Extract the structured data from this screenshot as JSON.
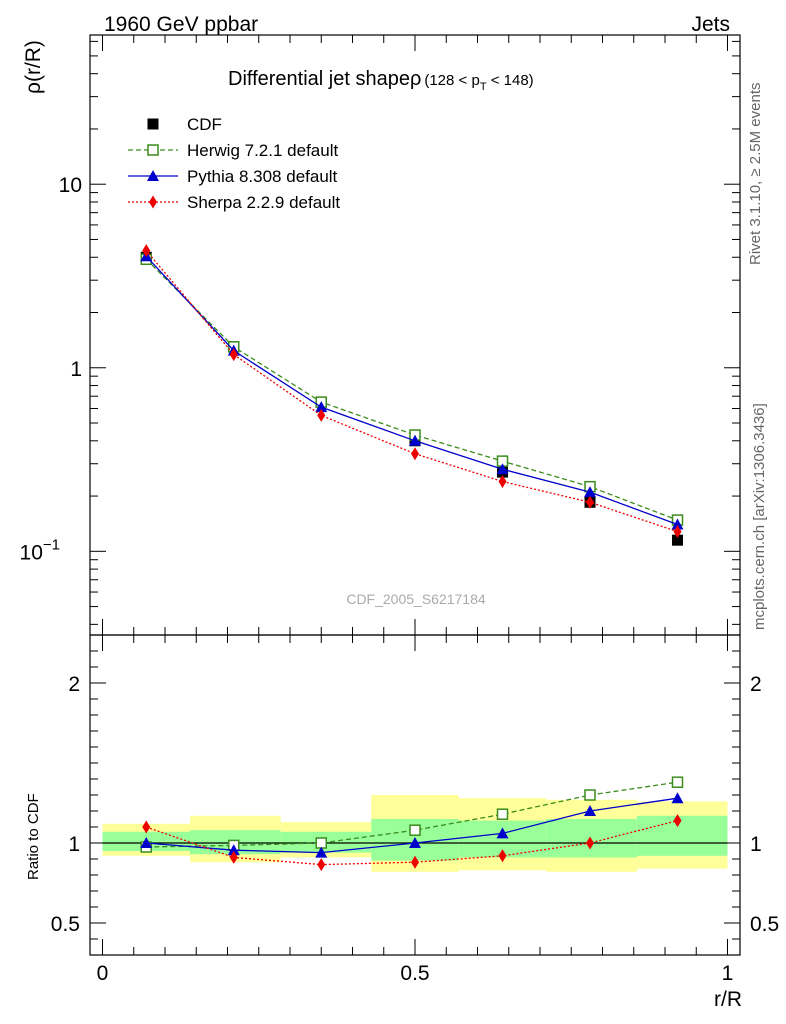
{
  "header": {
    "left": "1960 GeV ppbar",
    "right": "Jets"
  },
  "side_text": {
    "upper": "Rivet 3.1.10, ≥ 2.5M events",
    "lower": "mcplots.cern.ch [arXiv:1306.3436]"
  },
  "watermark": "CDF_2005_S6217184",
  "chart_data": [
    {
      "type": "line",
      "title_main": "Differential jet shapeρ",
      "title_sub": "(128 < p",
      "title_sub_index": "T",
      "title_sub_end": " < 148)",
      "ylabel": "ρ(r/R)",
      "yscale": "log",
      "ylim": [
        0.035,
        65
      ],
      "xlim": [
        -0.02,
        1.02
      ],
      "y_ticks": [
        {
          "value": 10,
          "label": "10"
        },
        {
          "value": 1,
          "label": "1"
        },
        {
          "value": 0.1,
          "label": "10",
          "exponent": "−1"
        }
      ],
      "x": [
        0.07,
        0.21,
        0.35,
        0.5,
        0.64,
        0.78,
        0.92
      ],
      "series": [
        {
          "name": "CDF",
          "style": "data",
          "color": "#000000",
          "marker": "square-filled",
          "values": [
            4.0,
            1.3,
            0.65,
            0.4,
            0.27,
            0.185,
            0.115
          ]
        },
        {
          "name": "Herwig 7.2.1 default",
          "style": "dashed",
          "color": "#3a8c1c",
          "marker": "square-open",
          "values": [
            3.9,
            1.3,
            0.65,
            0.43,
            0.31,
            0.225,
            0.148
          ]
        },
        {
          "name": "Pythia 8.308 default",
          "style": "solid",
          "color": "#0000cc",
          "marker": "triangle",
          "values": [
            4.05,
            1.24,
            0.61,
            0.4,
            0.28,
            0.21,
            0.14
          ]
        },
        {
          "name": "Sherpa 2.2.9 default",
          "style": "dotted",
          "color": "#ee0000",
          "marker": "diamond",
          "values": [
            4.35,
            1.18,
            0.55,
            0.34,
            0.24,
            0.185,
            0.128
          ]
        }
      ]
    },
    {
      "type": "line",
      "xlabel": "r/R",
      "ylabel": "Ratio to CDF",
      "ylim": [
        0.3,
        2.3
      ],
      "xlim": [
        -0.02,
        1.02
      ],
      "reference": 1.0,
      "y_ticks": [
        {
          "value": 2,
          "label": "2"
        },
        {
          "value": 1,
          "label": "1"
        },
        {
          "value": 0.5,
          "label": "0.5"
        }
      ],
      "x_ticks": [
        {
          "value": 0,
          "label": "0"
        },
        {
          "value": 0.5,
          "label": "0.5"
        },
        {
          "value": 1,
          "label": "1"
        }
      ],
      "bands": [
        {
          "x": [
            0.0,
            0.14
          ],
          "inner": [
            0.95,
            1.07
          ],
          "outer": [
            0.92,
            1.12
          ]
        },
        {
          "x": [
            0.14,
            0.285
          ],
          "inner": [
            0.93,
            1.08
          ],
          "outer": [
            0.88,
            1.17
          ]
        },
        {
          "x": [
            0.285,
            0.43
          ],
          "inner": [
            0.94,
            1.07
          ],
          "outer": [
            0.91,
            1.13
          ]
        },
        {
          "x": [
            0.43,
            0.57
          ],
          "inner": [
            0.89,
            1.15
          ],
          "outer": [
            0.82,
            1.3
          ]
        },
        {
          "x": [
            0.57,
            0.71
          ],
          "inner": [
            0.91,
            1.14
          ],
          "outer": [
            0.83,
            1.28
          ]
        },
        {
          "x": [
            0.71,
            0.855
          ],
          "inner": [
            0.91,
            1.15
          ],
          "outer": [
            0.82,
            1.27
          ]
        },
        {
          "x": [
            0.855,
            1.0
          ],
          "inner": [
            0.92,
            1.17
          ],
          "outer": [
            0.84,
            1.26
          ]
        }
      ],
      "x": [
        0.07,
        0.21,
        0.35,
        0.5,
        0.64,
        0.78,
        0.92
      ],
      "series": [
        {
          "name": "Herwig 7.2.1 default",
          "style": "dashed",
          "color": "#3a8c1c",
          "marker": "square-open",
          "values": [
            0.975,
            0.985,
            1.0,
            1.08,
            1.18,
            1.3,
            1.38
          ]
        },
        {
          "name": "Pythia 8.308 default",
          "style": "solid",
          "color": "#0000cc",
          "marker": "triangle",
          "values": [
            1.0,
            0.955,
            0.94,
            1.0,
            1.06,
            1.2,
            1.28
          ]
        },
        {
          "name": "Sherpa 2.2.9 default",
          "style": "dotted",
          "color": "#ee0000",
          "marker": "diamond",
          "values": [
            1.1,
            0.91,
            0.865,
            0.88,
            0.92,
            1.0,
            1.14
          ]
        }
      ]
    }
  ]
}
